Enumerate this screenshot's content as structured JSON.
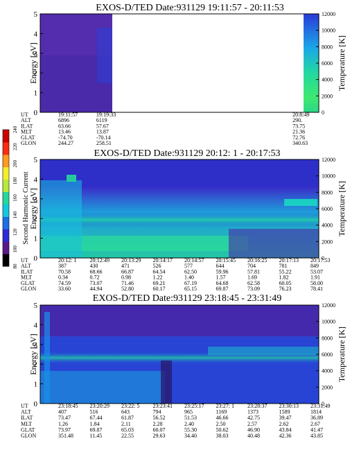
{
  "colorbar": {
    "label": "Second Harmonic Current",
    "ticks": [
      "80",
      "100",
      "120",
      "140",
      "160",
      "180",
      "200",
      "220",
      "240"
    ],
    "colors": [
      "#000000",
      "#5a1a8a",
      "#2a2ad8",
      "#1a6ee8",
      "#12c8e0",
      "#22d89a",
      "#b8e83a",
      "#f2ee2a",
      "#ff9a1a",
      "#ff2a10",
      "#cc0000"
    ]
  },
  "chart_data": [
    {
      "type": "heatmap",
      "title": "EXOS-D/TED  Date:931129  19:11:57 - 20:11:53",
      "ylabel": "Energy [eV]",
      "y2label": "Temperature [K]",
      "ylim": [
        0,
        5
      ],
      "y2lim": [
        0,
        12000
      ],
      "yticks": [
        "0",
        "1",
        "2",
        "3",
        "4",
        "5"
      ],
      "y2ticks": [
        "0",
        "2000",
        "4000",
        "6000",
        "8000",
        "10000",
        "12000"
      ],
      "coverage": [
        [
          0,
          0.31
        ],
        [
          0.95,
          1.0
        ]
      ],
      "table": {
        "row_labels": [
          "UT",
          "ALT",
          "ILAT",
          "MLT",
          "GLAT",
          "GLON"
        ],
        "columns": [
          {
            "at": 0.0,
            "values": [
              "19:11:57",
              "6896",
              "63.66",
              "13.46",
              "-74.70",
              "244.27"
            ]
          },
          {
            "at": 0.155,
            "values": [
              "19:19:33",
              "6119",
              "57.67",
              "13.87",
              "-70.14",
              "258.51"
            ]
          },
          {
            "at": 0.955,
            "values": [
              "20:8:49",
              "290.",
              "73.75",
              "21.36",
              "72.76",
              "340.63"
            ]
          }
        ]
      }
    },
    {
      "type": "heatmap",
      "title": "EXOS-D/TED   Date:931129  20:12: 1 - 20:17:53",
      "ylabel": "Energy [eV]",
      "y2label": "Temperature [K]",
      "ylim": [
        0,
        5
      ],
      "y2lim": [
        0,
        12000
      ],
      "yticks": [
        "0",
        "1",
        "2",
        "3",
        "4",
        "5"
      ],
      "y2ticks": [
        "0",
        "2000",
        "4000",
        "6000",
        "8000",
        "10000",
        "12000"
      ],
      "coverage": [
        [
          0,
          1
        ]
      ],
      "table": {
        "row_labels": [
          "UT",
          "ALT",
          "ILAT",
          "MLT",
          "GLAT",
          "GLON"
        ],
        "columns": [
          {
            "at": 0.0,
            "values": [
              "20:12: 1",
              "387",
              "70.58",
              "0.34",
              "74.59",
              "33.60"
            ]
          },
          {
            "at": 0.125,
            "values": [
              "20:12:49",
              "430",
              "68.66",
              "0.72",
              "73.07",
              "44.94"
            ]
          },
          {
            "at": 0.25,
            "values": [
              "20:13:29",
              "471",
              "66.87",
              "0.98",
              "71.46",
              "52.80"
            ]
          },
          {
            "at": 0.375,
            "values": [
              "20:14:17",
              "526",
              "64.54",
              "1.22",
              "69.21",
              "60.17"
            ]
          },
          {
            "at": 0.5,
            "values": [
              "20:14:57",
              "577",
              "62.50",
              "1.40",
              "67.19",
              "65.15"
            ]
          },
          {
            "at": 0.625,
            "values": [
              "20:15:45",
              "644",
              "59.96",
              "1.57",
              "64.68",
              "69.87"
            ]
          },
          {
            "at": 0.75,
            "values": [
              "20:16:25",
              "704",
              "57.81",
              "1.69",
              "62.58",
              "73.09"
            ]
          },
          {
            "at": 0.875,
            "values": [
              "20:17:13",
              "781",
              "55.22",
              "1.82",
              "60.05",
              "76.23"
            ]
          },
          {
            "at": 1.0,
            "values": [
              "20:17:53",
              "849",
              "53.07",
              "1.91",
              "58.00",
              "78.41"
            ]
          }
        ]
      }
    },
    {
      "type": "heatmap",
      "title": "EXOS-D/TED   Date:931129  23:18:45 - 23:31:49",
      "ylabel": "Energy [eV]",
      "y2label": "Temperature [K]",
      "ylim": [
        0,
        5
      ],
      "y2lim": [
        0,
        12000
      ],
      "yticks": [
        "0",
        "1",
        "2",
        "3",
        "4",
        "5"
      ],
      "y2ticks": [
        "0",
        "2000",
        "4000",
        "6000",
        "8000",
        "10000",
        "12000"
      ],
      "coverage": [
        [
          0,
          1
        ]
      ],
      "table": {
        "row_labels": [
          "UT",
          "ALT",
          "ILAT",
          "MLT",
          "GLAT",
          "GLON"
        ],
        "columns": [
          {
            "at": 0.0,
            "values": [
              "23:18:45",
              "407",
              "73.47",
              "1.26",
              "73.97",
              "351.48"
            ]
          },
          {
            "at": 0.125,
            "values": [
              "23:20:29",
              "516",
              "67.44",
              "1.84",
              "69.87",
              "11.45"
            ]
          },
          {
            "at": 0.25,
            "values": [
              "23:22: 5",
              "643",
              "61.87",
              "2.11",
              "65.03",
              "22.55"
            ]
          },
          {
            "at": 0.375,
            "values": [
              "23:23:41",
              "794",
              "56.52",
              "2.28",
              "60.07",
              "29.63"
            ]
          },
          {
            "at": 0.5,
            "values": [
              "23:25:17",
              "965",
              "51.53",
              "2.40",
              "55.30",
              "34.40"
            ]
          },
          {
            "at": 0.625,
            "values": [
              "23:27: 1",
              "1169",
              "46.66",
              "2.50",
              "50.62",
              "38.03"
            ]
          },
          {
            "at": 0.75,
            "values": [
              "23:28:37",
              "1373",
              "42.75",
              "2.57",
              "46.90",
              "40.48"
            ]
          },
          {
            "at": 0.875,
            "values": [
              "23:30:13",
              "1589",
              "39.47",
              "2.62",
              "43.84",
              "42.36"
            ]
          },
          {
            "at": 1.0,
            "values": [
              "23:31:49",
              "1814",
              "36.89",
              "2.67",
              "41.47",
              "43.85"
            ]
          }
        ]
      }
    }
  ]
}
